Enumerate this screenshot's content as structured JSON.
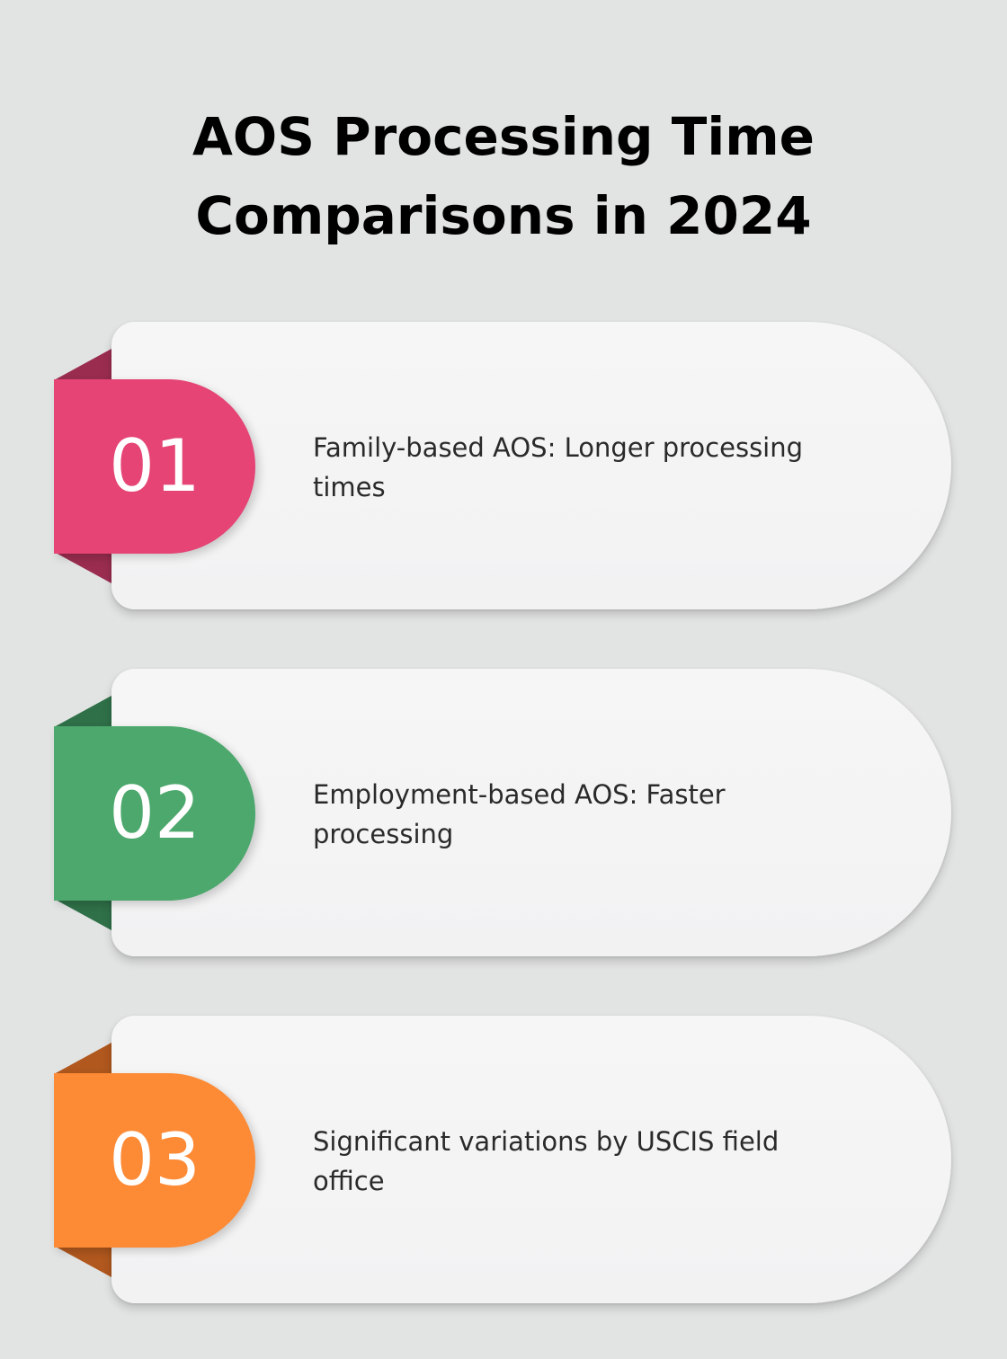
{
  "title_lines": [
    "AOS Processing Time",
    "Comparisons in 2024"
  ],
  "steps": [
    {
      "number": "01",
      "text": "Family-based AOS: Longer processing times",
      "color": "#e54475",
      "fold_color": "#9a2d4f"
    },
    {
      "number": "02",
      "text": "Employment-based AOS: Faster processing",
      "color": "#4ca86c",
      "fold_color": "#2f7048"
    },
    {
      "number": "03",
      "text": "Significant variations by USCIS field office",
      "color": "#fd8a35",
      "fold_color": "#b0581e"
    }
  ]
}
